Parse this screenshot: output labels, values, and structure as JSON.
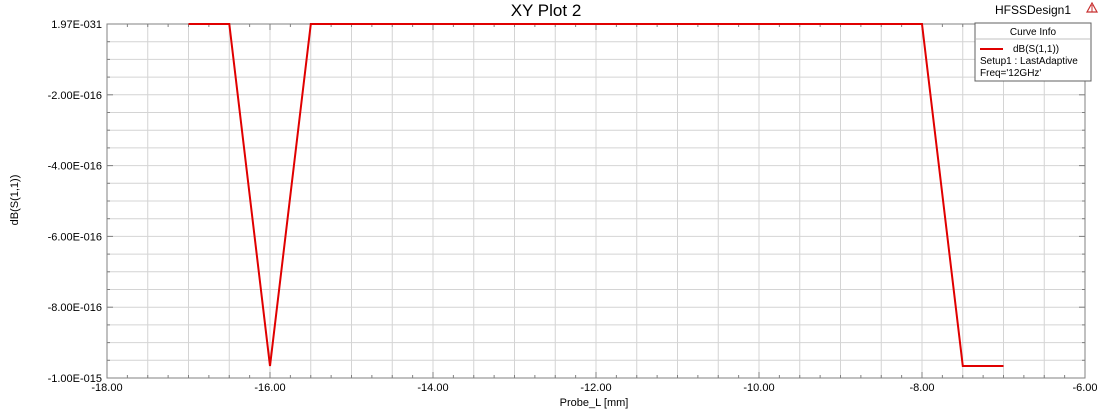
{
  "design_name": "HFSSDesign1",
  "colors": {
    "curve": "#e00000",
    "grid": "#d4d4d4",
    "axis": "#808080",
    "background": "#ffffff",
    "logo": "#c83030"
  },
  "legend": {
    "title": "Curve Info",
    "entries": [
      {
        "label": "dB(S(1,1))",
        "detail_lines": [
          "Setup1 : LastAdaptive",
          "Freq='12GHz'"
        ]
      }
    ]
  },
  "chart_data": {
    "type": "line",
    "title": "XY Plot 2",
    "xlabel": "Probe_L [mm]",
    "ylabel": "dB(S(1,1))",
    "xlim": [
      -18,
      -6
    ],
    "ylim": [
      -1e-15,
      1.97e-31
    ],
    "x_ticks": [
      -18,
      -16,
      -14,
      -12,
      -10,
      -8,
      -6
    ],
    "x_tick_labels": [
      "-18.00",
      "-16.00",
      "-14.00",
      "-12.00",
      "-10.00",
      "-8.00",
      "-6.00"
    ],
    "y_ticks": [
      1.97e-31,
      -2e-16,
      -4e-16,
      -6e-16,
      -8e-16,
      -1e-15
    ],
    "y_tick_labels": [
      "1.97E-031",
      "-2.00E-016",
      "-4.00E-016",
      "-6.00E-016",
      "-8.00E-016",
      "-1.00E-015"
    ],
    "grid": true,
    "legend_position": "top-right",
    "series": [
      {
        "name": "dB(S(1,1))",
        "x": [
          -17.0,
          -16.5,
          -16.0,
          -15.5,
          -15.0,
          -14.5,
          -14.0,
          -13.5,
          -13.0,
          -12.5,
          -12.0,
          -11.5,
          -11.0,
          -10.5,
          -10.0,
          -9.5,
          -9.0,
          -8.5,
          -8.0,
          -7.5,
          -7.0
        ],
        "y": [
          1.97e-31,
          1.97e-31,
          -9.66e-16,
          1.97e-31,
          1.97e-31,
          1.97e-31,
          1.97e-31,
          1.97e-31,
          1.97e-31,
          1.97e-31,
          1.97e-31,
          1.97e-31,
          1.97e-31,
          1.97e-31,
          1.97e-31,
          1.97e-31,
          1.97e-31,
          1.97e-31,
          1.97e-31,
          -9.66e-16,
          -9.66e-16
        ]
      }
    ]
  }
}
